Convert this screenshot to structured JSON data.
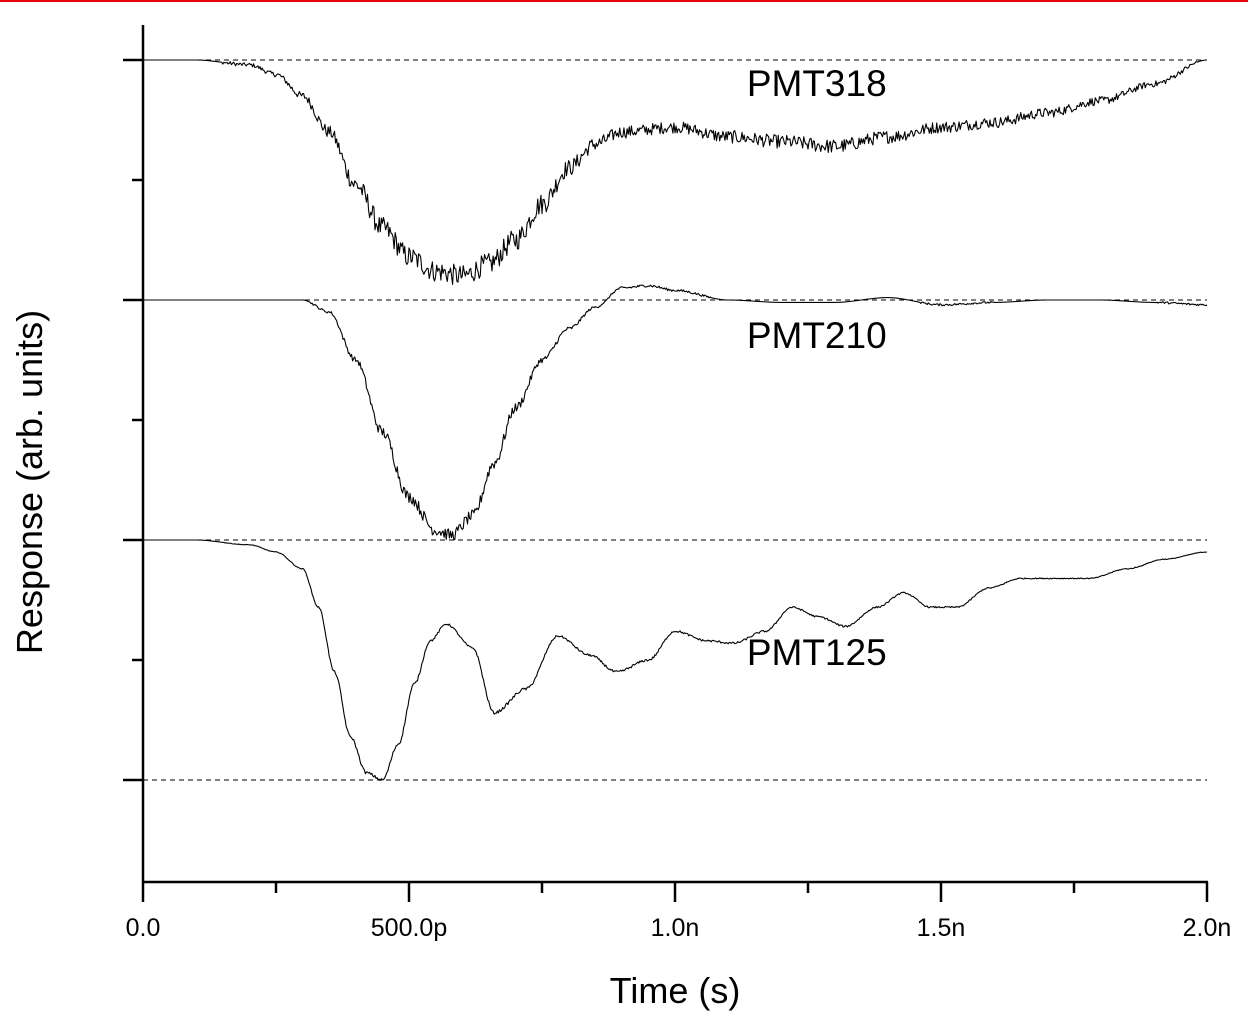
{
  "chart_data": {
    "type": "line",
    "title": "",
    "xlabel": "Time (s)",
    "ylabel": "Response (arb. units)",
    "xlim": [
      0,
      2e-09
    ],
    "ylim": [
      -3.35,
      0.1
    ],
    "x_ticks": [
      {
        "value": 0,
        "label": "0.0"
      },
      {
        "value": 5e-10,
        "label": "500.0p"
      },
      {
        "value": 1e-09,
        "label": "1.0n"
      },
      {
        "value": 1.5e-09,
        "label": "1.5n"
      },
      {
        "value": 2e-09,
        "label": "2.0n"
      }
    ],
    "x_minor_ticks": [
      2.5e-10,
      7.5e-10,
      1.25e-09,
      1.75e-09
    ],
    "y_ticks_major": [
      0,
      -1,
      -2,
      -3
    ],
    "y_ticks_minor": [
      -0.5,
      -1.5,
      -2.5
    ],
    "reference_lines": [
      0,
      -1,
      -2,
      -3
    ],
    "series": [
      {
        "name": "PMT318",
        "baseline": 0,
        "noise": 0.045,
        "x": [
          0,
          1e-10,
          2e-10,
          2.5e-10,
          3e-10,
          3.5e-10,
          4e-10,
          4.5e-10,
          5e-10,
          5.5e-10,
          6e-10,
          6.5e-10,
          7e-10,
          7.5e-10,
          8e-10,
          8.5e-10,
          9e-10,
          1e-09,
          1.1e-09,
          1.2e-09,
          1.3e-09,
          1.4e-09,
          1.5e-09,
          1.6e-09,
          1.7e-09,
          1.8e-09,
          1.9e-09,
          2e-09
        ],
        "y": [
          0,
          0,
          -0.02,
          -0.06,
          -0.15,
          -0.3,
          -0.52,
          -0.7,
          -0.82,
          -0.88,
          -0.9,
          -0.85,
          -0.75,
          -0.6,
          -0.45,
          -0.35,
          -0.3,
          -0.28,
          -0.32,
          -0.34,
          -0.36,
          -0.32,
          -0.28,
          -0.26,
          -0.22,
          -0.17,
          -0.1,
          0
        ]
      },
      {
        "name": "PMT210",
        "baseline": -1,
        "noise": 0.025,
        "x": [
          0,
          2e-10,
          3e-10,
          3.5e-10,
          4e-10,
          4.5e-10,
          5e-10,
          5.5e-10,
          5.8e-10,
          6.2e-10,
          6.6e-10,
          7e-10,
          7.5e-10,
          8e-10,
          8.5e-10,
          9e-10,
          9.5e-10,
          1e-09,
          1.1e-09,
          1.2e-09,
          1.3e-09,
          1.4e-09,
          1.5e-09,
          1.6e-09,
          1.7e-09,
          1.8e-09,
          1.9e-09,
          2e-09
        ],
        "y": [
          0,
          0,
          0,
          -0.05,
          -0.25,
          -0.55,
          -0.82,
          -0.96,
          -0.98,
          -0.9,
          -0.68,
          -0.45,
          -0.25,
          -0.12,
          -0.03,
          0.05,
          0.06,
          0.04,
          0,
          -0.01,
          -0.01,
          0.01,
          -0.02,
          -0.01,
          0,
          0,
          -0.01,
          -0.02
        ]
      },
      {
        "name": "PMT125",
        "baseline": -2,
        "noise": 0.006,
        "x": [
          0,
          1e-10,
          2e-10,
          2.5e-10,
          3e-10,
          3.3e-10,
          3.6e-10,
          3.9e-10,
          4.2e-10,
          4.5e-10,
          4.8e-10,
          5.1e-10,
          5.4e-10,
          5.7e-10,
          6.2e-10,
          6.6e-10,
          7.2e-10,
          7.8e-10,
          8.4e-10,
          8.9e-10,
          9.5e-10,
          1e-09,
          1.06e-09,
          1.11e-09,
          1.17e-09,
          1.22e-09,
          1.27e-09,
          1.32e-09,
          1.38e-09,
          1.43e-09,
          1.48e-09,
          1.53e-09,
          1.59e-09,
          1.65e-09,
          1.71e-09,
          1.78e-09,
          1.85e-09,
          1.92e-09,
          2e-09
        ],
        "y": [
          0,
          0,
          -0.02,
          -0.05,
          -0.12,
          -0.28,
          -0.55,
          -0.82,
          -0.97,
          -1.0,
          -0.85,
          -0.6,
          -0.42,
          -0.35,
          -0.45,
          -0.72,
          -0.62,
          -0.4,
          -0.48,
          -0.55,
          -0.5,
          -0.38,
          -0.42,
          -0.43,
          -0.38,
          -0.28,
          -0.32,
          -0.36,
          -0.28,
          -0.22,
          -0.28,
          -0.28,
          -0.2,
          -0.16,
          -0.16,
          -0.16,
          -0.12,
          -0.08,
          -0.05
        ]
      }
    ],
    "series_labels": [
      {
        "text": "PMT318",
        "x": 1.135e-09,
        "y": -0.15
      },
      {
        "text": "PMT210",
        "x": 1.135e-09,
        "y": -1.2
      },
      {
        "text": "PMT125",
        "x": 1.135e-09,
        "y": -2.52
      }
    ],
    "grid": false,
    "legend": "none"
  }
}
